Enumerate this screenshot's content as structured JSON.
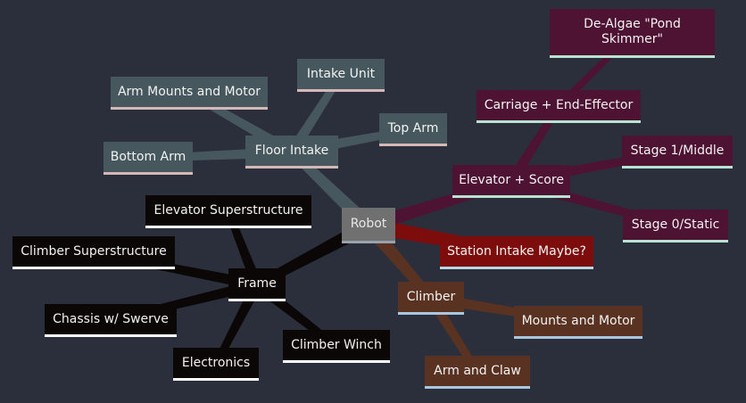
{
  "colors": {
    "background": "#2b2f3b",
    "root_fill": "#707070",
    "root_border": "#9aa3ad",
    "intake_fill": "#46585e",
    "intake_border": "#d4b8b8",
    "intake_edge": "#46585e",
    "frame_fill": "#0b0707",
    "frame_border": "#ffffff",
    "frame_edge": "#0b0707",
    "elevator_fill": "#4e1233",
    "elevator_border": "#b7e4d0",
    "elevator_edge": "#4e1233",
    "station_fill": "#7d0c0d",
    "station_border": "#b7d9e4",
    "station_edge": "#7d0c0d",
    "climber_fill": "#5a3222",
    "climber_border": "#a9c7e0",
    "climber_edge": "#5a3222"
  },
  "mindmap": {
    "root": {
      "label": "Robot"
    },
    "branches": [
      {
        "id": "floor",
        "label": "Floor Intake",
        "group": "intake",
        "children": [
          {
            "id": "arm-mounts",
            "label": "Arm Mounts and Motor"
          },
          {
            "id": "intake-unit",
            "label": "Intake Unit"
          },
          {
            "id": "top-arm",
            "label": "Top Arm"
          },
          {
            "id": "bottom-arm",
            "label": "Bottom Arm"
          }
        ]
      },
      {
        "id": "frame",
        "label": "Frame",
        "group": "frame",
        "children": [
          {
            "id": "elev-super",
            "label": "Elevator Superstructure"
          },
          {
            "id": "climb-super",
            "label": "Climber Superstructure"
          },
          {
            "id": "chassis",
            "label": "Chassis w/ Swerve"
          },
          {
            "id": "electronics",
            "label": "Electronics"
          },
          {
            "id": "winch",
            "label": "Climber Winch"
          }
        ]
      },
      {
        "id": "elevator",
        "label": "Elevator + Score",
        "group": "elevator",
        "children": [
          {
            "id": "carriage",
            "label": "Carriage + End-Effector"
          },
          {
            "id": "dealgae",
            "label": "De-Algae \"Pond Skimmer\"",
            "parent": "carriage"
          },
          {
            "id": "stage1",
            "label": "Stage 1/Middle"
          },
          {
            "id": "stage0",
            "label": "Stage 0/Static"
          }
        ]
      },
      {
        "id": "station",
        "label": "Station Intake Maybe?",
        "group": "station",
        "children": []
      },
      {
        "id": "climber",
        "label": "Climber",
        "group": "climber",
        "children": [
          {
            "id": "mounts-motor",
            "label": "Mounts and Motor"
          },
          {
            "id": "arm-claw",
            "label": "Arm and Claw"
          }
        ]
      }
    ]
  }
}
